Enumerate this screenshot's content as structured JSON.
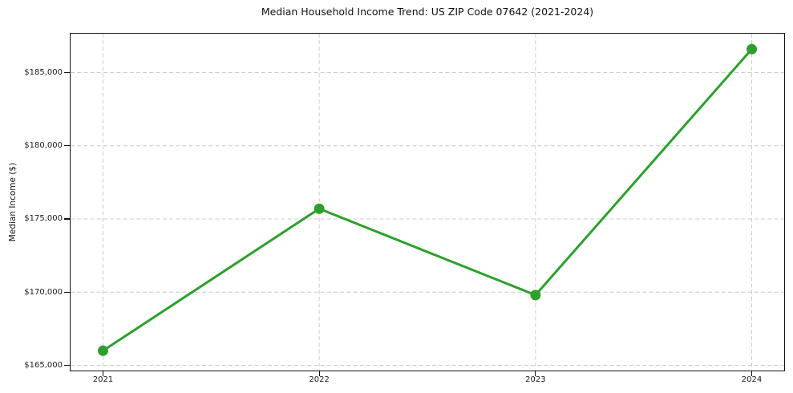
{
  "chart_data": {
    "type": "line",
    "title": "Median Household Income Trend: US ZIP Code 07642 (2021-2024)",
    "xlabel": "",
    "ylabel": "Median Income ($)",
    "x": [
      2021,
      2022,
      2023,
      2024
    ],
    "xtick_labels": [
      "2021",
      "2022",
      "2023",
      "2024"
    ],
    "series": [
      {
        "name": "Median household income",
        "values": [
          166000,
          175700,
          169800,
          186600
        ],
        "color": "#2ca02c",
        "marker": "circle",
        "marker_radius": 6.5,
        "line_width": 3
      }
    ],
    "ytick_values": [
      165000,
      170000,
      175000,
      180000,
      185000
    ],
    "ytick_labels": [
      "$165,000",
      "$170,000",
      "$175,000",
      "$180,000",
      "$185,000"
    ],
    "xlim": [
      2020.85,
      2024.15
    ],
    "ylim": [
      164644,
      187657
    ],
    "grid": "dashed",
    "grid_color": "#cccccc",
    "spine_color": "#111111",
    "tick_color": "#111111",
    "background": "#ffffff",
    "legend": "none"
  }
}
